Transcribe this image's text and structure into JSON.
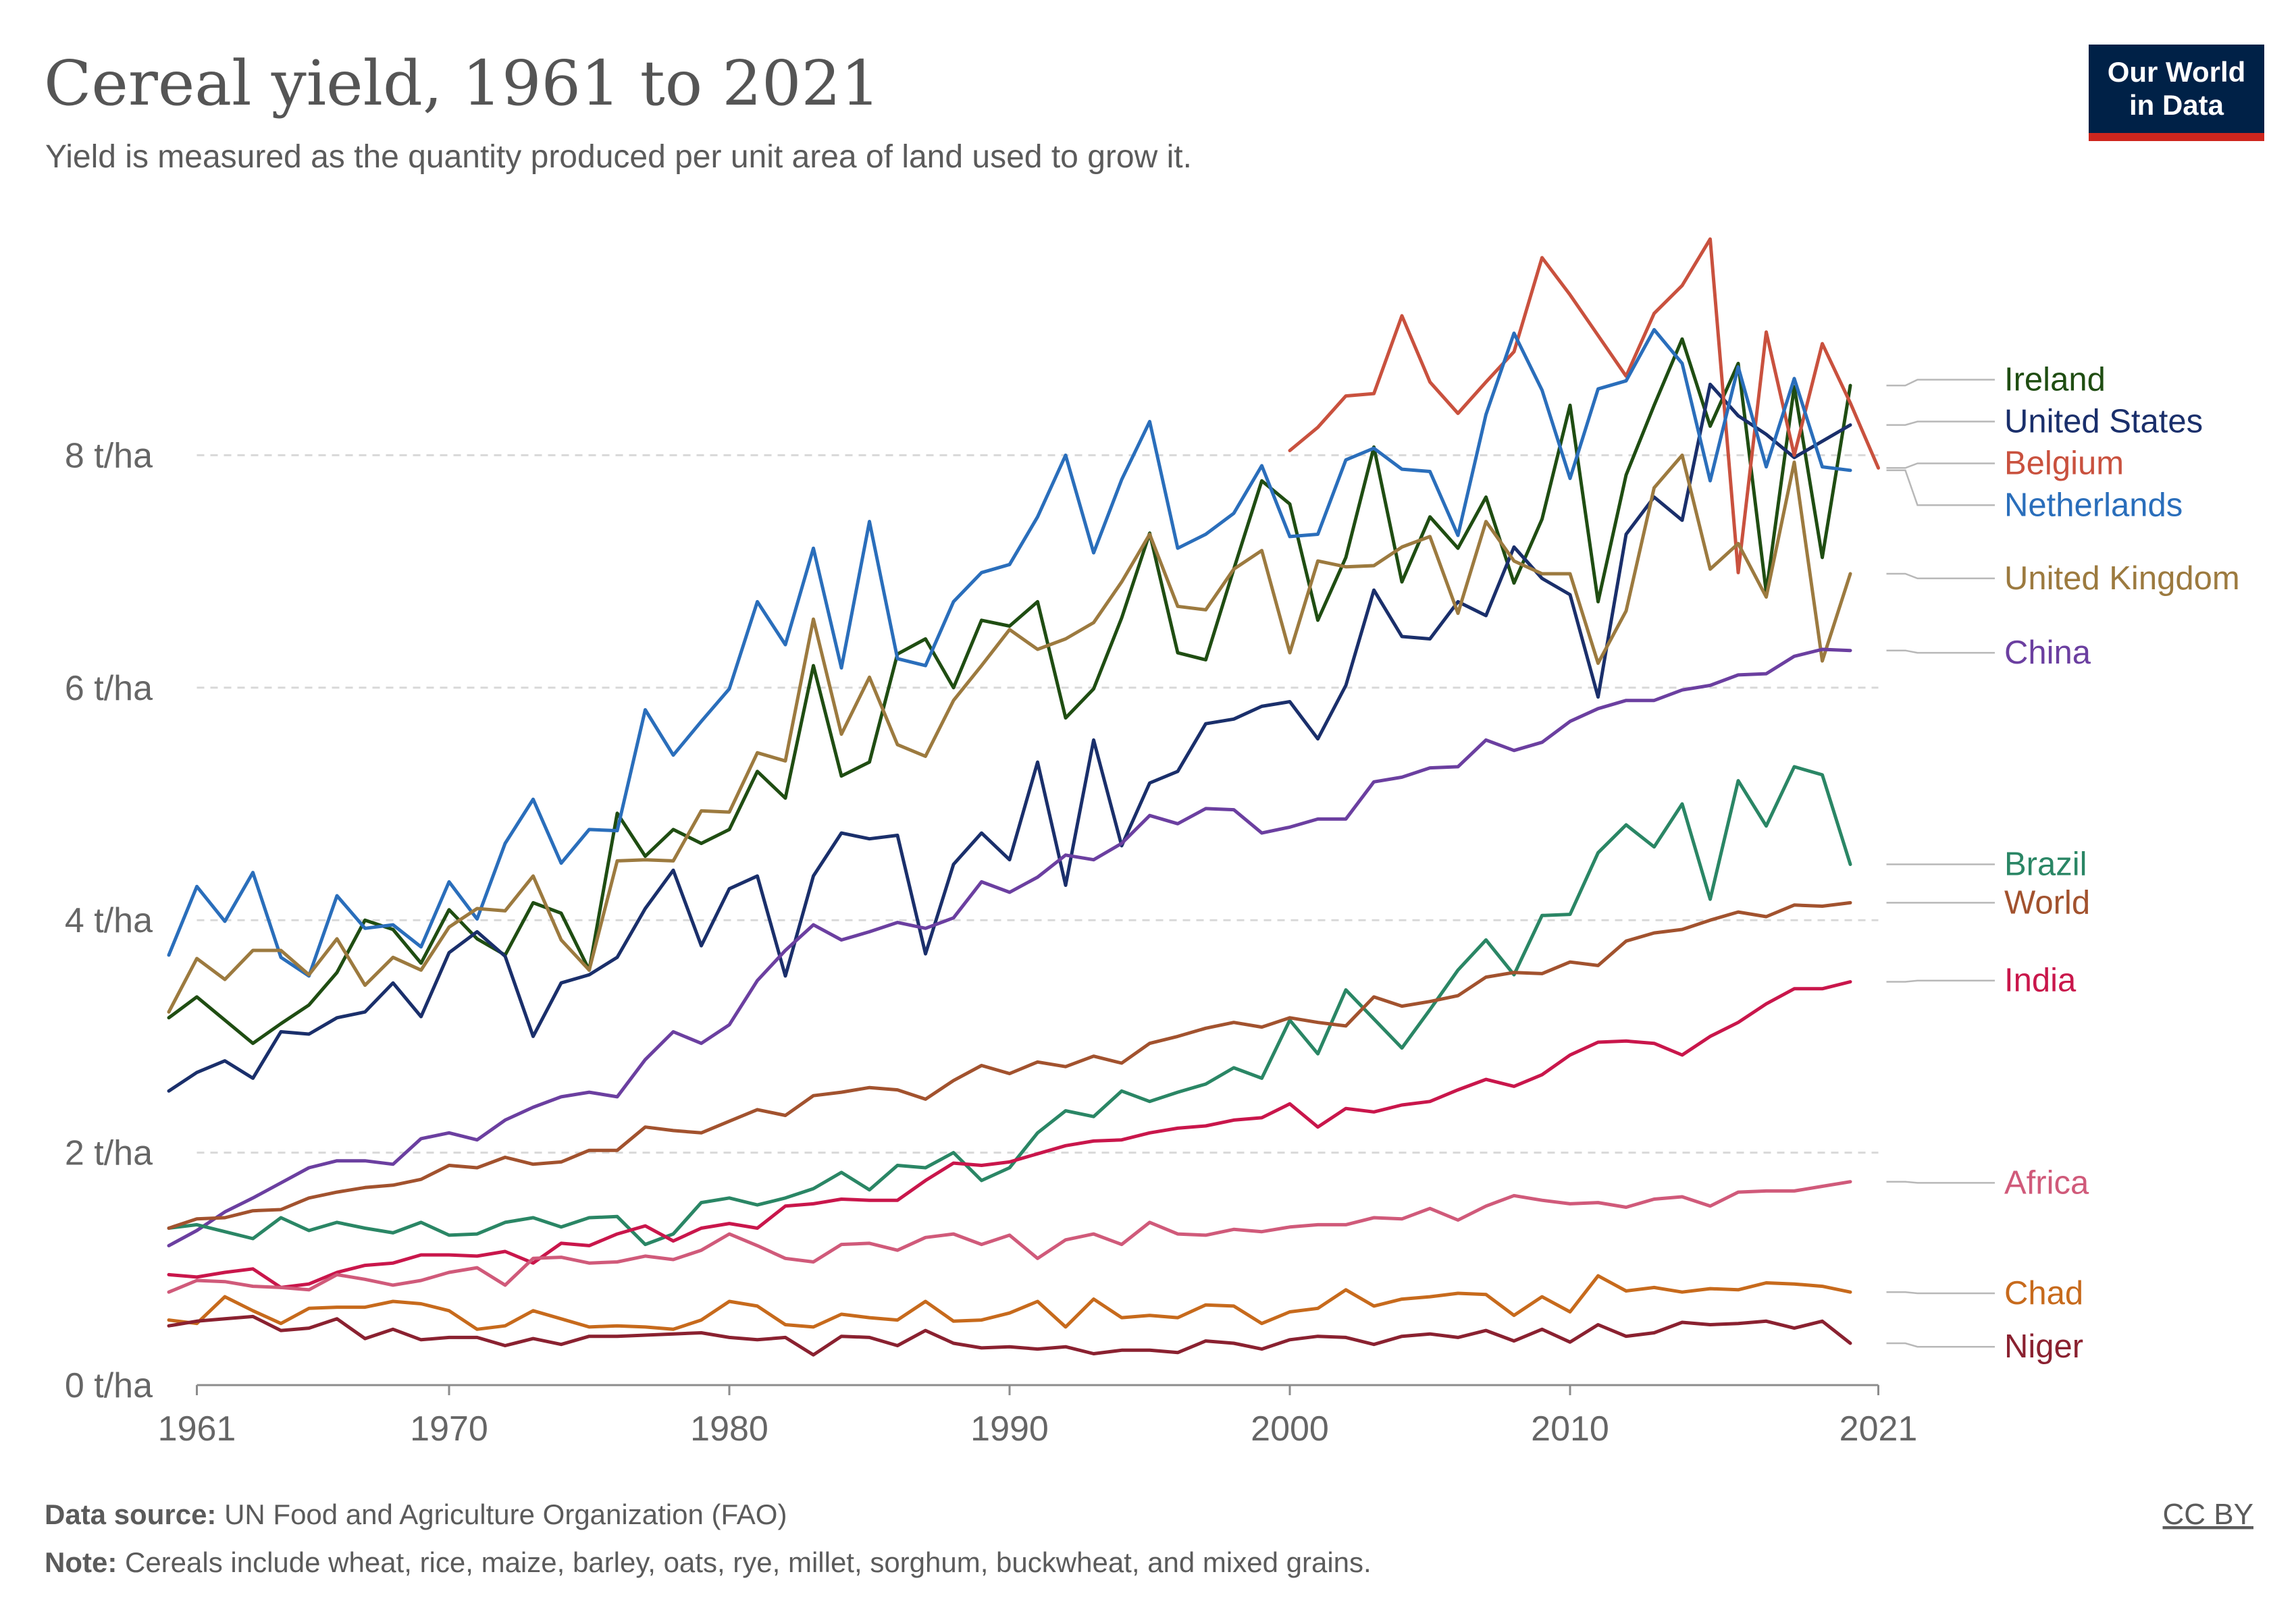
{
  "title": "Cereal yield, 1961 to 2021",
  "subtitle": "Yield is measured as the quantity produced per unit area of land used to grow it.",
  "logo": {
    "line1": "Our World",
    "line2": "in Data",
    "bg_color": "#002147",
    "accent_color": "#ce261e"
  },
  "license": "CC BY",
  "footer": {
    "source_label": "Data source:",
    "source_text": " UN Food and Agriculture Organization (FAO)",
    "note_label": "Note:",
    "note_text": " Cereals include wheat, rice, maize, barley, oats, rye, millet, sorghum, buckwheat, and mixed grains."
  },
  "chart_data": {
    "type": "line",
    "xlim": [
      1960,
      2022
    ],
    "ylim": [
      0,
      10
    ],
    "x_ticks": [
      {
        "value": 1961,
        "label": "1961"
      },
      {
        "value": 1970,
        "label": "1970"
      },
      {
        "value": 1980,
        "label": "1980"
      },
      {
        "value": 1990,
        "label": "1990"
      },
      {
        "value": 2000,
        "label": "2000"
      },
      {
        "value": 2010,
        "label": "2010"
      },
      {
        "value": 2021,
        "label": "2021"
      }
    ],
    "y_ticks": [
      {
        "value": 0,
        "label": "0 t/ha"
      },
      {
        "value": 2,
        "label": "2 t/ha"
      },
      {
        "value": 4,
        "label": "4 t/ha"
      },
      {
        "value": 6,
        "label": "6 t/ha"
      },
      {
        "value": 8,
        "label": "8 t/ha"
      }
    ],
    "grid": "horizontal dashed",
    "legend": "right, line-end labels",
    "series": [
      {
        "name": "Ireland",
        "color": "#1f4d12",
        "start": 1960,
        "values": [
          3.16,
          3.34,
          3.14,
          2.94,
          3.11,
          3.27,
          3.55,
          4.0,
          3.92,
          3.63,
          4.09,
          3.84,
          3.7,
          4.15,
          4.06,
          3.57,
          4.92,
          4.55,
          4.78,
          4.66,
          4.78,
          5.28,
          5.05,
          6.19,
          5.24,
          5.36,
          6.29,
          6.42,
          6.0,
          6.58,
          6.53,
          6.74,
          5.74,
          5.99,
          6.6,
          7.33,
          6.3,
          6.24,
          7.02,
          7.78,
          7.58,
          6.58,
          7.12,
          8.07,
          6.91,
          7.47,
          7.2,
          7.64,
          6.9,
          7.45,
          8.43,
          6.74,
          7.83,
          8.43,
          9.0,
          8.25,
          8.79,
          6.82,
          8.59,
          7.12,
          8.6
        ],
        "label_y": 8.65
      },
      {
        "name": "United States",
        "color": "#1a2f6b",
        "start": 1960,
        "values": [
          2.53,
          2.69,
          2.79,
          2.64,
          3.04,
          3.02,
          3.16,
          3.21,
          3.46,
          3.17,
          3.72,
          3.9,
          3.69,
          3.0,
          3.46,
          3.53,
          3.68,
          4.1,
          4.43,
          3.78,
          4.27,
          4.38,
          3.52,
          4.38,
          4.75,
          4.7,
          4.73,
          3.71,
          4.48,
          4.75,
          4.52,
          5.36,
          4.3,
          5.55,
          4.64,
          5.18,
          5.28,
          5.69,
          5.73,
          5.84,
          5.88,
          5.56,
          6.02,
          6.84,
          6.44,
          6.42,
          6.74,
          6.62,
          7.21,
          6.94,
          6.8,
          5.92,
          7.32,
          7.64,
          7.44,
          8.61,
          8.34,
          8.18,
          7.98,
          8.12,
          8.26
        ],
        "label_y": 8.29
      },
      {
        "name": "Belgium",
        "color": "#c9513e",
        "start": 2000,
        "values": [
          8.04,
          8.24,
          8.51,
          8.53,
          9.2,
          8.63,
          8.36,
          8.63,
          8.89,
          9.7,
          9.38,
          9.03,
          8.68,
          9.22,
          9.46,
          9.86,
          6.99,
          9.06,
          8.0,
          8.96,
          8.45,
          7.89
        ],
        "label_y": 7.93
      },
      {
        "name": "Netherlands",
        "color": "#2a6ebb",
        "start": 1960,
        "values": [
          3.7,
          4.29,
          3.99,
          4.41,
          3.68,
          3.52,
          4.21,
          3.93,
          3.96,
          3.77,
          4.33,
          4.01,
          4.66,
          5.04,
          4.49,
          4.78,
          4.77,
          5.81,
          5.42,
          5.71,
          5.99,
          6.74,
          6.37,
          7.2,
          6.17,
          7.43,
          6.25,
          6.19,
          6.74,
          6.99,
          7.06,
          7.47,
          8.0,
          7.16,
          7.79,
          8.29,
          7.2,
          7.32,
          7.5,
          7.91,
          7.3,
          7.32,
          7.96,
          8.06,
          7.88,
          7.86,
          7.31,
          8.35,
          9.05,
          8.56,
          7.8,
          8.57,
          8.64,
          9.08,
          8.79,
          7.78,
          8.76,
          7.9,
          8.66,
          7.9,
          7.87
        ],
        "label_y": 7.57
      },
      {
        "name": "United Kingdom",
        "color": "#9c7a3f",
        "start": 1960,
        "values": [
          3.21,
          3.67,
          3.49,
          3.74,
          3.74,
          3.53,
          3.84,
          3.44,
          3.68,
          3.57,
          3.94,
          4.1,
          4.08,
          4.38,
          3.83,
          3.57,
          4.51,
          4.52,
          4.51,
          4.94,
          4.93,
          5.44,
          5.37,
          6.59,
          5.6,
          6.09,
          5.51,
          5.41,
          5.89,
          6.19,
          6.5,
          6.33,
          6.42,
          6.56,
          6.91,
          7.32,
          6.7,
          6.67,
          7.02,
          7.18,
          6.3,
          7.09,
          7.04,
          7.05,
          7.21,
          7.3,
          6.64,
          7.43,
          7.09,
          6.98,
          6.98,
          6.21,
          6.66,
          7.72,
          8.0,
          7.02,
          7.24,
          6.78,
          7.94,
          6.23,
          6.98
        ],
        "label_y": 6.94
      },
      {
        "name": "China",
        "color": "#6b3fa0",
        "start": 1960,
        "values": [
          1.2,
          1.33,
          1.49,
          1.61,
          1.74,
          1.87,
          1.93,
          1.93,
          1.9,
          2.12,
          2.17,
          2.11,
          2.28,
          2.39,
          2.48,
          2.52,
          2.48,
          2.8,
          3.04,
          2.94,
          3.1,
          3.48,
          3.74,
          3.96,
          3.83,
          3.9,
          3.98,
          3.93,
          4.02,
          4.33,
          4.24,
          4.37,
          4.56,
          4.52,
          4.66,
          4.9,
          4.83,
          4.96,
          4.95,
          4.75,
          4.8,
          4.87,
          4.87,
          5.19,
          5.23,
          5.31,
          5.32,
          5.55,
          5.46,
          5.53,
          5.71,
          5.82,
          5.89,
          5.89,
          5.98,
          6.02,
          6.11,
          6.12,
          6.27,
          6.33,
          6.32
        ],
        "label_y": 6.3
      },
      {
        "name": "Brazil",
        "color": "#2a8665",
        "start": 1960,
        "values": [
          1.35,
          1.38,
          1.32,
          1.26,
          1.44,
          1.33,
          1.4,
          1.35,
          1.31,
          1.4,
          1.29,
          1.3,
          1.4,
          1.44,
          1.36,
          1.44,
          1.45,
          1.21,
          1.3,
          1.57,
          1.61,
          1.55,
          1.61,
          1.69,
          1.83,
          1.68,
          1.89,
          1.87,
          2.0,
          1.76,
          1.87,
          2.17,
          2.36,
          2.31,
          2.53,
          2.44,
          2.52,
          2.59,
          2.73,
          2.64,
          3.14,
          2.85,
          3.4,
          3.15,
          2.9,
          3.23,
          3.57,
          3.83,
          3.53,
          4.04,
          4.05,
          4.58,
          4.82,
          4.63,
          5.0,
          4.18,
          5.2,
          4.81,
          5.32,
          5.25,
          4.48
        ],
        "label_y": 4.48
      },
      {
        "name": "World",
        "color": "#a2522e",
        "start": 1960,
        "values": [
          1.35,
          1.43,
          1.44,
          1.5,
          1.51,
          1.61,
          1.66,
          1.7,
          1.72,
          1.77,
          1.89,
          1.87,
          1.96,
          1.9,
          1.92,
          2.02,
          2.02,
          2.22,
          2.19,
          2.17,
          2.27,
          2.37,
          2.32,
          2.49,
          2.52,
          2.56,
          2.54,
          2.46,
          2.62,
          2.75,
          2.68,
          2.78,
          2.74,
          2.83,
          2.77,
          2.94,
          3.0,
          3.07,
          3.12,
          3.08,
          3.16,
          3.12,
          3.09,
          3.34,
          3.26,
          3.3,
          3.35,
          3.51,
          3.55,
          3.54,
          3.64,
          3.61,
          3.82,
          3.89,
          3.92,
          4.0,
          4.07,
          4.03,
          4.13,
          4.12,
          4.15
        ],
        "label_y": 4.15
      },
      {
        "name": "India",
        "color": "#c9164b",
        "start": 1960,
        "values": [
          0.95,
          0.93,
          0.97,
          1.0,
          0.84,
          0.87,
          0.97,
          1.03,
          1.05,
          1.12,
          1.12,
          1.11,
          1.15,
          1.05,
          1.22,
          1.2,
          1.3,
          1.37,
          1.24,
          1.35,
          1.39,
          1.35,
          1.54,
          1.56,
          1.6,
          1.59,
          1.59,
          1.76,
          1.91,
          1.89,
          1.92,
          1.99,
          2.06,
          2.1,
          2.11,
          2.17,
          2.21,
          2.23,
          2.28,
          2.3,
          2.42,
          2.22,
          2.38,
          2.35,
          2.41,
          2.44,
          2.54,
          2.63,
          2.57,
          2.67,
          2.84,
          2.95,
          2.96,
          2.94,
          2.84,
          3.0,
          3.12,
          3.28,
          3.41,
          3.41,
          3.47
        ],
        "label_y": 3.48
      },
      {
        "name": "Africa",
        "color": "#d05a7a",
        "start": 1960,
        "values": [
          0.8,
          0.9,
          0.89,
          0.85,
          0.84,
          0.82,
          0.95,
          0.91,
          0.86,
          0.9,
          0.97,
          1.01,
          0.86,
          1.09,
          1.1,
          1.05,
          1.06,
          1.11,
          1.08,
          1.16,
          1.3,
          1.2,
          1.09,
          1.06,
          1.21,
          1.22,
          1.16,
          1.27,
          1.3,
          1.21,
          1.29,
          1.09,
          1.25,
          1.3,
          1.21,
          1.4,
          1.3,
          1.29,
          1.34,
          1.32,
          1.36,
          1.38,
          1.38,
          1.44,
          1.43,
          1.52,
          1.42,
          1.54,
          1.63,
          1.59,
          1.56,
          1.57,
          1.53,
          1.6,
          1.62,
          1.54,
          1.66,
          1.67,
          1.67,
          1.71,
          1.75
        ],
        "label_y": 1.74
      },
      {
        "name": "Chad",
        "color": "#c76a1c",
        "start": 1960,
        "values": [
          0.56,
          0.53,
          0.76,
          0.64,
          0.53,
          0.66,
          0.67,
          0.67,
          0.72,
          0.7,
          0.64,
          0.48,
          0.51,
          0.64,
          0.57,
          0.5,
          0.51,
          0.5,
          0.48,
          0.56,
          0.72,
          0.68,
          0.52,
          0.5,
          0.61,
          0.58,
          0.56,
          0.72,
          0.55,
          0.56,
          0.62,
          0.72,
          0.5,
          0.74,
          0.58,
          0.6,
          0.58,
          0.69,
          0.68,
          0.53,
          0.63,
          0.66,
          0.82,
          0.68,
          0.74,
          0.76,
          0.79,
          0.78,
          0.6,
          0.76,
          0.63,
          0.94,
          0.81,
          0.84,
          0.8,
          0.83,
          0.82,
          0.88,
          0.87,
          0.85,
          0.8
        ],
        "label_y": 0.79
      },
      {
        "name": "Niger",
        "color": "#8a2130",
        "start": 1960,
        "values": [
          0.51,
          0.55,
          0.57,
          0.59,
          0.47,
          0.49,
          0.57,
          0.4,
          0.48,
          0.39,
          0.41,
          0.41,
          0.34,
          0.4,
          0.35,
          0.42,
          0.42,
          0.43,
          0.44,
          0.45,
          0.41,
          0.39,
          0.41,
          0.26,
          0.42,
          0.41,
          0.34,
          0.47,
          0.36,
          0.32,
          0.33,
          0.31,
          0.33,
          0.27,
          0.3,
          0.3,
          0.28,
          0.38,
          0.36,
          0.31,
          0.39,
          0.42,
          0.41,
          0.35,
          0.42,
          0.44,
          0.41,
          0.47,
          0.38,
          0.48,
          0.37,
          0.52,
          0.42,
          0.45,
          0.54,
          0.52,
          0.53,
          0.55,
          0.49,
          0.55,
          0.36
        ],
        "label_y": 0.33
      }
    ]
  }
}
